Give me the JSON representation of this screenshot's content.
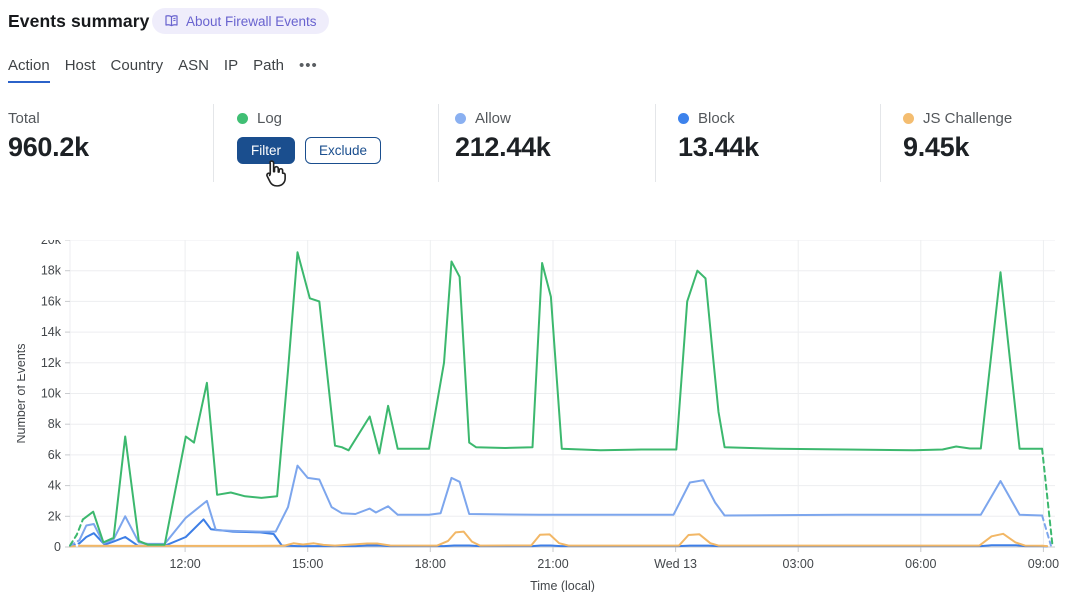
{
  "header": {
    "title": "Events summary",
    "about_badge_label": "About Firewall Events"
  },
  "tabs": {
    "items": [
      {
        "label": "Action",
        "active": true
      },
      {
        "label": "Host"
      },
      {
        "label": "Country"
      },
      {
        "label": "ASN"
      },
      {
        "label": "IP"
      },
      {
        "label": "Path"
      }
    ],
    "more_label": "•••"
  },
  "stats": {
    "columns": [
      {
        "label": "Total",
        "value": "960.2k"
      },
      {
        "label": "Log",
        "dot_color": "#40bf74",
        "buttons": {
          "filter": "Filter",
          "exclude": "Exclude"
        }
      },
      {
        "label": "Allow",
        "value": "212.44k",
        "dot_color": "#8ab0f1"
      },
      {
        "label": "Block",
        "value": "13.44k",
        "dot_color": "#3c82ec"
      },
      {
        "label": "JS Challenge",
        "value": "9.45k",
        "dot_color": "#f4bd70"
      }
    ]
  },
  "chart_data": {
    "type": "line",
    "xlabel": "Time (local)",
    "ylabel": "Number of Events",
    "x_unit": "minutes after 09:00",
    "x_domain": [
      11,
      1457
    ],
    "ylim": [
      0,
      20000
    ],
    "grid_on": true,
    "grid_color": "#edeef0",
    "axis_color": "#c9cbce",
    "tick_text_color": "#43474b",
    "legend_position": "top-stats-row",
    "y_ticks": [
      {
        "value": 0,
        "label": "0"
      },
      {
        "value": 2000,
        "label": "2k"
      },
      {
        "value": 4000,
        "label": "4k"
      },
      {
        "value": 6000,
        "label": "6k"
      },
      {
        "value": 8000,
        "label": "8k"
      },
      {
        "value": 10000,
        "label": "10k"
      },
      {
        "value": 12000,
        "label": "12k"
      },
      {
        "value": 14000,
        "label": "14k"
      },
      {
        "value": 16000,
        "label": "16k"
      },
      {
        "value": 18000,
        "label": "18k"
      },
      {
        "value": 20000,
        "label": "20k"
      }
    ],
    "x_ticks": [
      {
        "minute": 180,
        "label": "12:00"
      },
      {
        "minute": 360,
        "label": "15:00"
      },
      {
        "minute": 540,
        "label": "18:00"
      },
      {
        "minute": 720,
        "label": "21:00"
      },
      {
        "minute": 900,
        "label": "Wed 13"
      },
      {
        "minute": 1080,
        "label": "03:00"
      },
      {
        "minute": 1260,
        "label": "06:00"
      },
      {
        "minute": 1440,
        "label": "09:00"
      }
    ],
    "draw_order": [
      2,
      3,
      1,
      0
    ],
    "series": [
      {
        "name": "Log",
        "color": "#3cb86e",
        "dashed_head": [
          [
            11,
            100
          ],
          [
            21,
            800
          ],
          [
            30,
            1800
          ]
        ],
        "points": [
          [
            30,
            1800
          ],
          [
            45,
            2300
          ],
          [
            60,
            300
          ],
          [
            75,
            600
          ],
          [
            92,
            7200
          ],
          [
            112,
            400
          ],
          [
            125,
            150
          ],
          [
            150,
            150
          ],
          [
            181,
            7200
          ],
          [
            193,
            6800
          ],
          [
            212,
            10700
          ],
          [
            227,
            3400
          ],
          [
            247,
            3550
          ],
          [
            268,
            3300
          ],
          [
            292,
            3200
          ],
          [
            315,
            3300
          ],
          [
            331,
            11500
          ],
          [
            345,
            19200
          ],
          [
            363,
            16200
          ],
          [
            377,
            16000
          ],
          [
            400,
            6600
          ],
          [
            410,
            6500
          ],
          [
            420,
            6300
          ],
          [
            451,
            8500
          ],
          [
            465,
            6100
          ],
          [
            478,
            9200
          ],
          [
            492,
            6400
          ],
          [
            520,
            6400
          ],
          [
            538,
            6400
          ],
          [
            560,
            12000
          ],
          [
            571,
            18600
          ],
          [
            583,
            17600
          ],
          [
            597,
            6800
          ],
          [
            607,
            6500
          ],
          [
            650,
            6450
          ],
          [
            690,
            6500
          ],
          [
            704,
            18500
          ],
          [
            717,
            16300
          ],
          [
            733,
            6400
          ],
          [
            790,
            6300
          ],
          [
            850,
            6350
          ],
          [
            901,
            6350
          ],
          [
            917,
            16000
          ],
          [
            932,
            18000
          ],
          [
            944,
            17500
          ],
          [
            955,
            12400
          ],
          [
            963,
            8800
          ],
          [
            972,
            6500
          ],
          [
            1050,
            6400
          ],
          [
            1150,
            6350
          ],
          [
            1250,
            6300
          ],
          [
            1292,
            6350
          ],
          [
            1312,
            6550
          ],
          [
            1332,
            6420
          ],
          [
            1348,
            6420
          ],
          [
            1377,
            17900
          ],
          [
            1405,
            6400
          ],
          [
            1438,
            6400
          ]
        ],
        "dashed_tail": [
          [
            1438,
            6400
          ],
          [
            1453,
            200
          ]
        ]
      },
      {
        "name": "Allow",
        "color": "#7da6ed",
        "dashed_head": [
          [
            11,
            80
          ],
          [
            25,
            450
          ]
        ],
        "points": [
          [
            25,
            450
          ],
          [
            35,
            1400
          ],
          [
            46,
            1500
          ],
          [
            60,
            250
          ],
          [
            75,
            500
          ],
          [
            92,
            2000
          ],
          [
            112,
            300
          ],
          [
            125,
            200
          ],
          [
            150,
            200
          ],
          [
            181,
            1900
          ],
          [
            212,
            3000
          ],
          [
            225,
            1100
          ],
          [
            250,
            1050
          ],
          [
            290,
            1000
          ],
          [
            313,
            1000
          ],
          [
            331,
            2600
          ],
          [
            345,
            5300
          ],
          [
            360,
            4500
          ],
          [
            377,
            4400
          ],
          [
            395,
            2600
          ],
          [
            410,
            2200
          ],
          [
            430,
            2150
          ],
          [
            451,
            2500
          ],
          [
            460,
            2250
          ],
          [
            478,
            2650
          ],
          [
            492,
            2100
          ],
          [
            538,
            2100
          ],
          [
            555,
            2200
          ],
          [
            571,
            4500
          ],
          [
            583,
            4250
          ],
          [
            597,
            2150
          ],
          [
            700,
            2100
          ],
          [
            800,
            2100
          ],
          [
            897,
            2100
          ],
          [
            921,
            4200
          ],
          [
            941,
            4350
          ],
          [
            958,
            2900
          ],
          [
            972,
            2050
          ],
          [
            1150,
            2100
          ],
          [
            1348,
            2100
          ],
          [
            1377,
            4300
          ],
          [
            1405,
            2100
          ],
          [
            1438,
            2050
          ]
        ],
        "dashed_tail": [
          [
            1438,
            2050
          ],
          [
            1451,
            100
          ]
        ]
      },
      {
        "name": "Block",
        "color": "#3d7ee6",
        "dashed_head": [
          [
            11,
            50
          ],
          [
            25,
            250
          ]
        ],
        "points": [
          [
            25,
            250
          ],
          [
            35,
            650
          ],
          [
            46,
            900
          ],
          [
            62,
            150
          ],
          [
            75,
            350
          ],
          [
            92,
            650
          ],
          [
            111,
            80
          ],
          [
            150,
            80
          ],
          [
            181,
            650
          ],
          [
            207,
            1800
          ],
          [
            218,
            1150
          ],
          [
            250,
            1000
          ],
          [
            290,
            950
          ],
          [
            310,
            850
          ],
          [
            322,
            100
          ],
          [
            345,
            60
          ],
          [
            430,
            60
          ],
          [
            447,
            100
          ],
          [
            465,
            100
          ],
          [
            481,
            60
          ],
          [
            560,
            60
          ],
          [
            575,
            100
          ],
          [
            597,
            100
          ],
          [
            612,
            60
          ],
          [
            690,
            60
          ],
          [
            702,
            100
          ],
          [
            717,
            100
          ],
          [
            731,
            60
          ],
          [
            905,
            60
          ],
          [
            921,
            90
          ],
          [
            948,
            90
          ],
          [
            962,
            60
          ],
          [
            1348,
            60
          ],
          [
            1364,
            110
          ],
          [
            1400,
            110
          ],
          [
            1413,
            60
          ],
          [
            1438,
            60
          ]
        ],
        "dashed_tail": [
          [
            1438,
            60
          ],
          [
            1450,
            30
          ]
        ]
      },
      {
        "name": "JS Challenge",
        "color": "#f2b766",
        "dashed_head": [
          [
            11,
            40
          ],
          [
            25,
            80
          ]
        ],
        "points": [
          [
            25,
            80
          ],
          [
            150,
            70
          ],
          [
            310,
            80
          ],
          [
            326,
            90
          ],
          [
            339,
            240
          ],
          [
            353,
            160
          ],
          [
            369,
            240
          ],
          [
            383,
            140
          ],
          [
            400,
            90
          ],
          [
            447,
            230
          ],
          [
            462,
            230
          ],
          [
            481,
            100
          ],
          [
            550,
            90
          ],
          [
            566,
            400
          ],
          [
            577,
            950
          ],
          [
            589,
            1000
          ],
          [
            601,
            350
          ],
          [
            613,
            90
          ],
          [
            688,
            100
          ],
          [
            701,
            800
          ],
          [
            715,
            820
          ],
          [
            729,
            250
          ],
          [
            743,
            90
          ],
          [
            905,
            90
          ],
          [
            919,
            780
          ],
          [
            935,
            830
          ],
          [
            951,
            250
          ],
          [
            963,
            90
          ],
          [
            1346,
            90
          ],
          [
            1364,
            700
          ],
          [
            1381,
            860
          ],
          [
            1399,
            300
          ],
          [
            1413,
            90
          ],
          [
            1438,
            80
          ]
        ],
        "dashed_tail": [
          [
            1438,
            80
          ],
          [
            1450,
            40
          ]
        ]
      }
    ]
  }
}
